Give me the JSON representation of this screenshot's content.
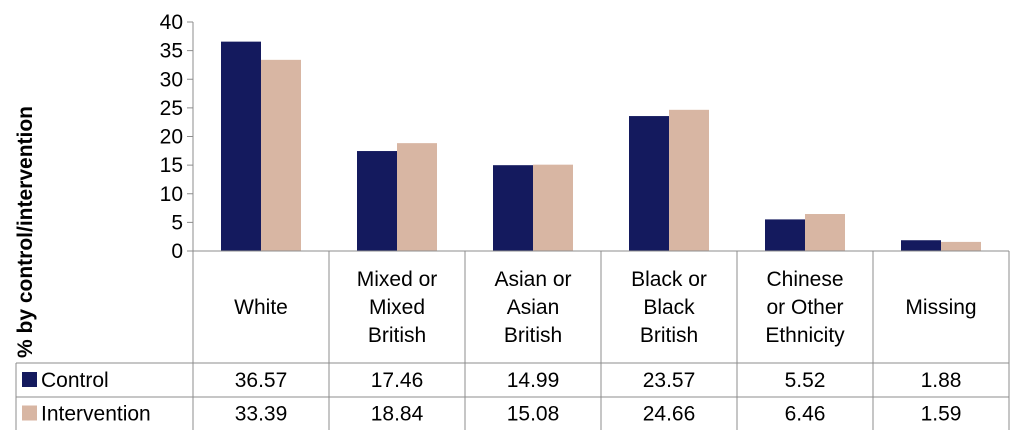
{
  "chart_data": {
    "type": "bar",
    "ylabel": "% by control/intervention",
    "ylim": [
      0,
      40
    ],
    "yticks": [
      0,
      5,
      10,
      15,
      20,
      25,
      30,
      35,
      40
    ],
    "categories": [
      [
        "White"
      ],
      [
        "Mixed or",
        "Mixed",
        "British"
      ],
      [
        "Asian or",
        "Asian",
        "British"
      ],
      [
        "Black or",
        "Black",
        "British"
      ],
      [
        "Chinese",
        "or Other",
        "Ethnicity"
      ],
      [
        "Missing"
      ]
    ],
    "series": [
      {
        "name": "Control",
        "color": "#141a5e",
        "values": [
          36.57,
          17.46,
          14.99,
          23.57,
          5.52,
          1.88
        ]
      },
      {
        "name": "Intervention",
        "color": "#d8b6a3",
        "values": [
          33.39,
          18.84,
          15.08,
          24.66,
          6.46,
          1.59
        ]
      }
    ],
    "data_table": true,
    "grid": false,
    "legend": "data-table-rows"
  }
}
